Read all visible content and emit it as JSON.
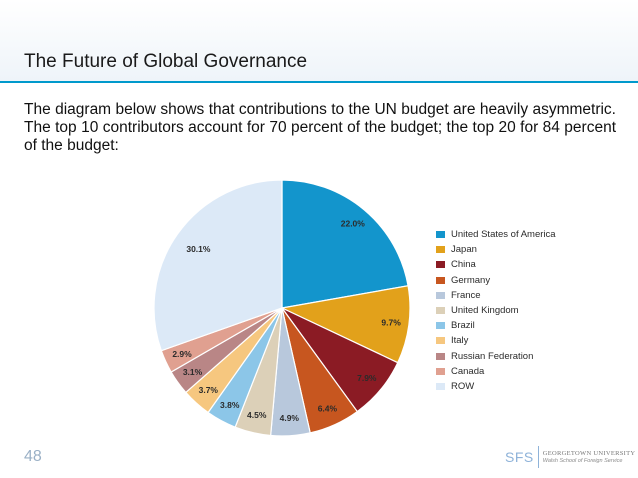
{
  "slide": {
    "title": "The Future of Global Governance",
    "body": "The diagram below shows that contributions to the UN budget are heavily asymmetric. The top 10 contributors account for 70 percent of the budget; the top 20 for 84 percent of the budget:",
    "page_number": "48",
    "footer": {
      "sfs": "SFS",
      "university": "GEORGETOWN UNIVERSITY",
      "school": "Walsh School of Foreign Service"
    }
  },
  "chart_data": {
    "type": "pie",
    "title": "",
    "categories": [
      "United States of America",
      "Japan",
      "China",
      "Germany",
      "France",
      "United Kingdom",
      "Brazil",
      "Italy",
      "Russian Federation",
      "Canada",
      "ROW"
    ],
    "values": [
      22.0,
      9.7,
      7.9,
      6.4,
      4.9,
      4.5,
      3.8,
      3.7,
      3.1,
      2.9,
      30.1
    ],
    "labels": [
      "22.0%",
      "9.7%",
      "7.9%",
      "6.4%",
      "4.9%",
      "4.5%",
      "3.8%",
      "3.7%",
      "3.1%",
      "2.9%",
      "30.1%"
    ],
    "colors": [
      "#1395cc",
      "#e2a11b",
      "#8b1b24",
      "#c7561f",
      "#b8c8dc",
      "#dcd0b8",
      "#8cc6e8",
      "#f6c77f",
      "#b98686",
      "#e0a090",
      "#dce9f7"
    ],
    "legend_position": "right",
    "start_angle": "12 o'clock, clockwise"
  }
}
